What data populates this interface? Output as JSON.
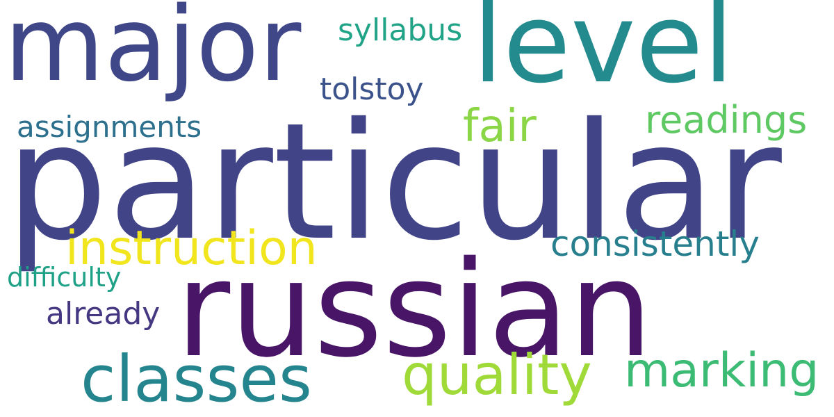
{
  "words": {
    "particular": {
      "text": "particular",
      "color": "#414487"
    },
    "russian": {
      "text": "russian",
      "color": "#481567"
    },
    "level": {
      "text": "level",
      "color": "#238a8d"
    },
    "major": {
      "text": "major",
      "color": "#404788"
    },
    "classes": {
      "text": "classes",
      "color": "#25858e"
    },
    "quality": {
      "text": "quality",
      "color": "#a0da39"
    },
    "marking": {
      "text": "marking",
      "color": "#3cbb75"
    },
    "instruction": {
      "text": "instruction",
      "color": "#f1e51d"
    },
    "fair": {
      "text": "fair",
      "color": "#8bd646"
    },
    "readings": {
      "text": "readings",
      "color": "#5ec962"
    },
    "consistently": {
      "text": "consistently",
      "color": "#277f8e"
    },
    "assignments": {
      "text": "assignments",
      "color": "#2d708e"
    },
    "tolstoy": {
      "text": "tolstoy",
      "color": "#3b528b"
    },
    "syllabus": {
      "text": "syllabus",
      "color": "#20a386"
    },
    "already": {
      "text": "already",
      "color": "#453781"
    },
    "difficulty": {
      "text": "difficulty",
      "color": "#1fa187"
    }
  }
}
